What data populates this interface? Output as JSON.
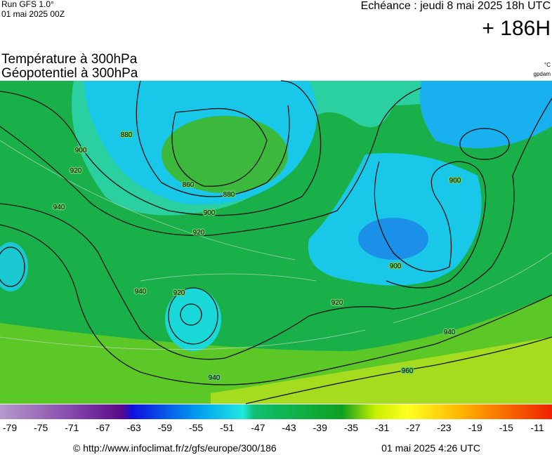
{
  "header": {
    "run": "Run GFS 1.0°",
    "run_date": "01 mai 2025 00Z",
    "echeance": "Echéance : jeudi 8 mai 2025 18h UTC",
    "lead": "+ 186H"
  },
  "titles": [
    "Température à 300hPa",
    "Géopotentiel à 300hPa"
  ],
  "units": [
    "°C",
    "gpdam"
  ],
  "contour_labels": [
    880,
    900,
    920,
    860,
    880,
    900,
    920,
    940,
    940,
    920,
    900,
    900,
    920,
    940,
    960,
    940
  ],
  "colorbar": {
    "ticks": [
      -79,
      -75,
      -71,
      -67,
      -63,
      -59,
      -55,
      -51,
      -47,
      -43,
      -39,
      -35,
      -31,
      -27,
      -23,
      -19,
      -15,
      -11
    ]
  },
  "footer": {
    "url": "© http://www.infoclimat.fr/z/gfs/europe/300/186",
    "date": "01 mai 2025  4:26 UTC"
  }
}
